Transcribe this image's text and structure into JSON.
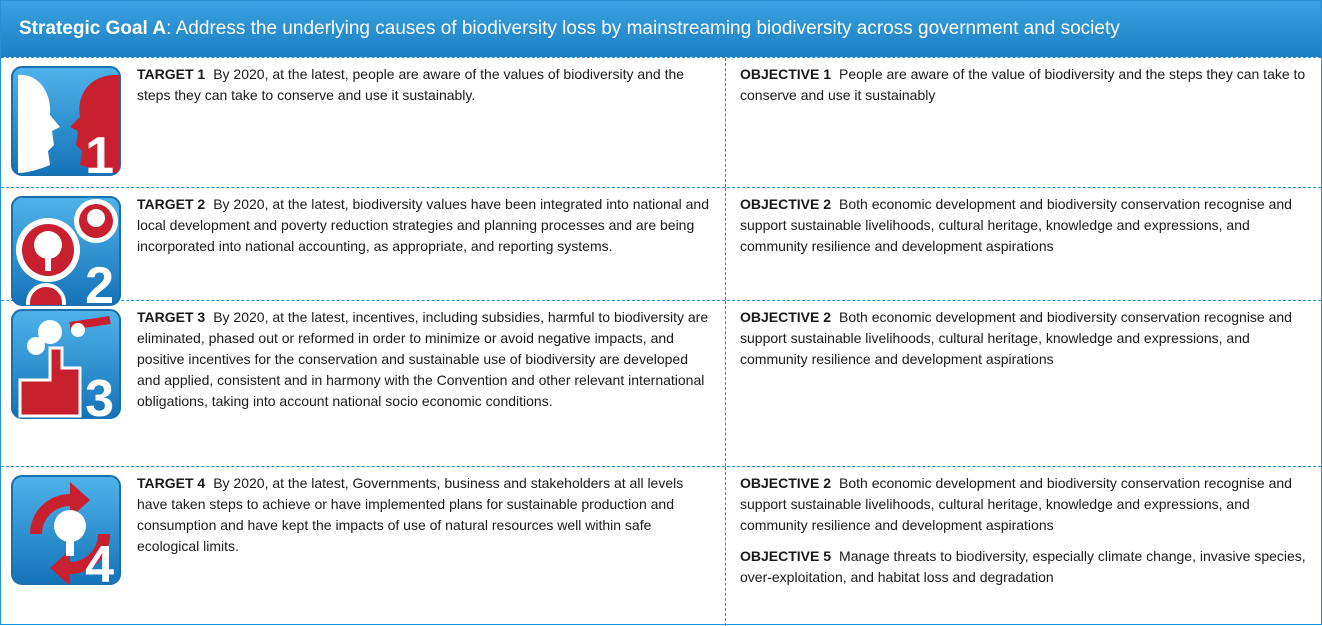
{
  "header": {
    "label": "Strategic Goal A",
    "text": ": Address the underlying causes of biodiversity loss by mainstreaming biodiversity across government and society"
  },
  "rows": [
    {
      "icon_number": "1",
      "target": {
        "label": "TARGET 1",
        "text": "By 2020, at the latest, people are aware of the values of biodiversity and the steps they can take to conserve and use it sustainably."
      },
      "objectives": [
        {
          "label": "OBJECTIVE 1",
          "text": "People are aware of the value of biodiversity and the steps they can take to conserve and use it sustainably"
        }
      ]
    },
    {
      "icon_number": "2",
      "target": {
        "label": "TARGET 2",
        "text": "By 2020, at the latest, biodiversity values have been integrated into national and local development and poverty reduction strategies and planning processes and are being incorporated into national accounting, as appropriate, and reporting systems."
      },
      "objectives": [
        {
          "label": "OBJECTIVE 2",
          "text": "Both economic development and biodiversity conservation recognise and support sustainable livelihoods, cultural heritage, knowledge and expressions, and community resilience and development aspirations"
        }
      ]
    },
    {
      "icon_number": "3",
      "target": {
        "label": "TARGET 3",
        "text": "By 2020, at the latest, incentives, including subsidies, harmful to biodiversity are eliminated, phased out or reformed in order to minimize or avoid negative impacts, and positive incentives for the conservation and sustainable use of biodiversity are developed and applied, consistent and in harmony with the Convention and other relevant international obligations, taking into account national socio economic conditions."
      },
      "objectives": [
        {
          "label": "OBJECTIVE 2",
          "text": "Both economic development and biodiversity conservation recognise and support sustainable livelihoods, cultural heritage, knowledge and expressions, and community resilience and development aspirations"
        }
      ]
    },
    {
      "icon_number": "4",
      "target": {
        "label": "TARGET 4",
        "text": "By 2020, at the latest, Governments, business and stakeholders at all levels have taken steps to achieve or have implemented plans for sustainable production and consumption and have kept the impacts of use of natural resources well within safe ecological limits."
      },
      "objectives": [
        {
          "label": "OBJECTIVE 2",
          "text": "Both economic development and biodiversity conservation recognise and support sustainable livelihoods, cultural heritage, knowledge and expressions, and community resilience and development aspirations"
        },
        {
          "label": "OBJECTIVE 5",
          "text": "Manage threats to biodiversity, especially climate change, invasive species, over-exploitation, and habitat loss and degradation"
        }
      ]
    }
  ]
}
